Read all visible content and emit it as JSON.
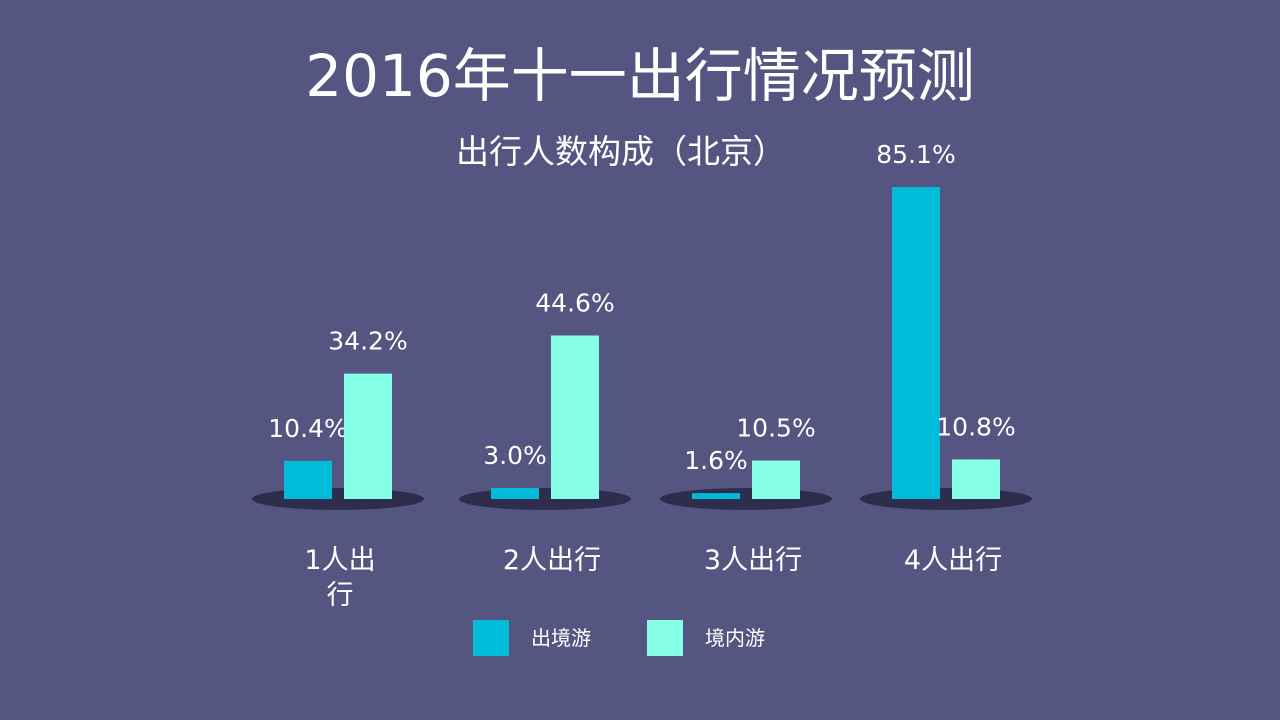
{
  "title": "2016年十一出行情况预测",
  "chart_data": {
    "type": "bar",
    "title": "出行人数构成（北京）",
    "categories": [
      "1人出行",
      "2人出行",
      "3人出行",
      "4人出行"
    ],
    "series": [
      {
        "name": "出境游",
        "values": [
          10.4,
          3.0,
          1.6,
          85.1
        ],
        "labels": [
          "10.4%",
          "3.0%",
          "1.6%",
          "85.1%"
        ],
        "color": "#00BCD8"
      },
      {
        "name": "境内游",
        "values": [
          34.2,
          44.6,
          10.5,
          10.8
        ],
        "labels": [
          "34.2%",
          "44.6%",
          "10.5%",
          "10.8%"
        ],
        "color": "#86FFE6"
      }
    ],
    "ylim": [
      0,
      100
    ],
    "unit": "%",
    "grid": false,
    "legend_position": "bottom"
  }
}
